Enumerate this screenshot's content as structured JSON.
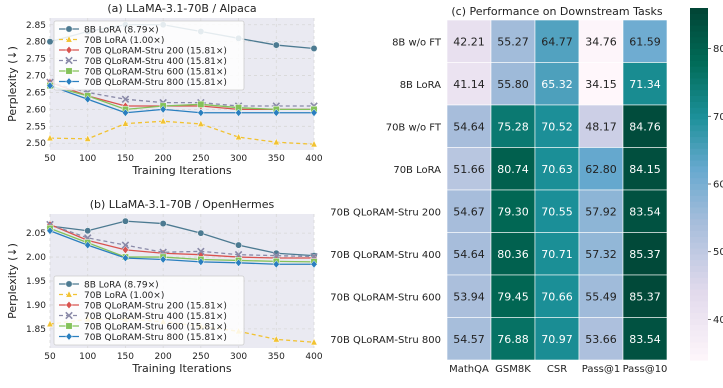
{
  "chart_data": [
    {
      "type": "line",
      "title": "(a) LLaMA-3.1-70B / Alpaca",
      "xlabel": "Training Iterations",
      "ylabel": "Perplexity (↓)",
      "x": [
        50,
        100,
        150,
        200,
        250,
        300,
        350,
        400
      ],
      "xlim": [
        50,
        400
      ],
      "ylim": [
        2.48,
        2.87
      ],
      "xticks": [
        "50",
        "100",
        "150",
        "200",
        "250",
        "300",
        "350",
        "400"
      ],
      "yticks": [
        "2.50",
        "2.55",
        "2.60",
        "2.65",
        "2.70",
        "2.75",
        "2.80",
        "2.85"
      ],
      "grid": true,
      "legend_position": "upper-left",
      "series": [
        {
          "name": "8B LoRA (8.79×)",
          "color": "#4c7a91",
          "marker": "circle",
          "dash": "solid",
          "values": [
            2.8,
            2.83,
            2.85,
            2.85,
            2.83,
            2.81,
            2.79,
            2.78
          ]
        },
        {
          "name": "70B LoRA (1.00×)",
          "color": "#f1c232",
          "marker": "triangle",
          "dash": "dashed",
          "values": [
            2.515,
            2.513,
            2.558,
            2.565,
            2.557,
            2.518,
            2.503,
            2.497
          ]
        },
        {
          "name": "70B QLoRAM-Stru 200 (15.81×)",
          "color": "#d9534f",
          "marker": "diamond",
          "dash": "solid",
          "values": [
            2.68,
            2.64,
            2.61,
            2.61,
            2.61,
            2.6,
            2.6,
            2.6
          ]
        },
        {
          "name": "70B QLoRAM-Stru 400 (15.81×)",
          "color": "#8a8aa8",
          "marker": "x",
          "dash": "dashed",
          "values": [
            2.68,
            2.65,
            2.63,
            2.62,
            2.62,
            2.61,
            2.61,
            2.61
          ]
        },
        {
          "name": "70B QLoRAM-Stru 600 (15.81×)",
          "color": "#84c25a",
          "marker": "square",
          "dash": "solid",
          "values": [
            2.67,
            2.64,
            2.6,
            2.61,
            2.615,
            2.605,
            2.6,
            2.6
          ]
        },
        {
          "name": "70B QLoRAM-Stru 800 (15.81×)",
          "color": "#2a7fbf",
          "marker": "diamond",
          "dash": "solid",
          "values": [
            2.67,
            2.63,
            2.59,
            2.6,
            2.59,
            2.59,
            2.59,
            2.59
          ]
        }
      ]
    },
    {
      "type": "line",
      "title": "(b) LLaMA-3.1-70B / OpenHermes",
      "xlabel": "Training Iterations",
      "ylabel": "Perplexity (↓)",
      "x": [
        50,
        100,
        150,
        200,
        250,
        300,
        350,
        400
      ],
      "xlim": [
        50,
        400
      ],
      "ylim": [
        1.81,
        2.09
      ],
      "xticks": [
        "50",
        "100",
        "150",
        "200",
        "250",
        "300",
        "350",
        "400"
      ],
      "yticks": [
        "1.85",
        "1.90",
        "1.95",
        "2.00",
        "2.05"
      ],
      "grid": true,
      "legend_position": "lower-left",
      "series": [
        {
          "name": "8B LoRA (8.79×)",
          "color": "#4c7a91",
          "marker": "circle",
          "dash": "solid",
          "values": [
            2.065,
            2.055,
            2.075,
            2.07,
            2.05,
            2.025,
            2.008,
            2.003
          ]
        },
        {
          "name": "70B LoRA (1.00×)",
          "color": "#f1c232",
          "marker": "triangle",
          "dash": "dashed",
          "values": [
            1.86,
            1.87,
            1.87,
            1.865,
            1.855,
            1.845,
            1.828,
            1.822
          ]
        },
        {
          "name": "70B QLoRAM-Stru 200 (15.81×)",
          "color": "#d9534f",
          "marker": "diamond",
          "dash": "solid",
          "values": [
            2.068,
            2.035,
            2.015,
            2.008,
            2.005,
            2.0,
            1.998,
            1.998
          ]
        },
        {
          "name": "70B QLoRAM-Stru 400 (15.81×)",
          "color": "#8a8aa8",
          "marker": "x",
          "dash": "dashed",
          "values": [
            2.068,
            2.04,
            2.025,
            2.01,
            2.012,
            2.005,
            2.003,
            2.001
          ]
        },
        {
          "name": "70B QLoRAM-Stru 600 (15.81×)",
          "color": "#84c25a",
          "marker": "square",
          "dash": "solid",
          "values": [
            2.06,
            2.03,
            2.0,
            2.0,
            1.995,
            1.993,
            1.991,
            1.99
          ]
        },
        {
          "name": "70B QLoRAM-Stru 800 (15.81×)",
          "color": "#2a7fbf",
          "marker": "diamond",
          "dash": "solid",
          "values": [
            2.055,
            2.025,
            1.998,
            1.995,
            1.99,
            1.988,
            1.985,
            1.985
          ]
        }
      ]
    },
    {
      "type": "heatmap",
      "title": "(c) Performance on Downstream Tasks",
      "rows": [
        "8B w/o FT",
        "8B LoRA",
        "70B w/o FT",
        "70B LoRA",
        "70B QLoRAM-Stru 200",
        "70B QLoRAM-Stru 400",
        "70B QLoRAM-Stru 600",
        "70B QLoRAM-Stru 800"
      ],
      "columns": [
        "MathQA",
        "GSM8K",
        "CSR",
        "Pass@1",
        "Pass@10"
      ],
      "values": [
        [
          42.21,
          55.27,
          64.77,
          34.76,
          61.59
        ],
        [
          41.14,
          55.8,
          65.32,
          34.15,
          71.34
        ],
        [
          54.64,
          75.28,
          70.52,
          48.17,
          84.76
        ],
        [
          51.66,
          80.74,
          70.63,
          62.8,
          84.15
        ],
        [
          54.67,
          79.3,
          70.55,
          57.92,
          83.54
        ],
        [
          54.64,
          80.36,
          70.71,
          57.32,
          85.37
        ],
        [
          53.94,
          79.45,
          70.66,
          55.49,
          85.37
        ],
        [
          54.57,
          76.88,
          70.97,
          53.66,
          83.54
        ]
      ],
      "colorbar_ticks": [
        "40",
        "50",
        "60",
        "70",
        "80"
      ],
      "vmin": 34,
      "vmax": 86
    }
  ]
}
